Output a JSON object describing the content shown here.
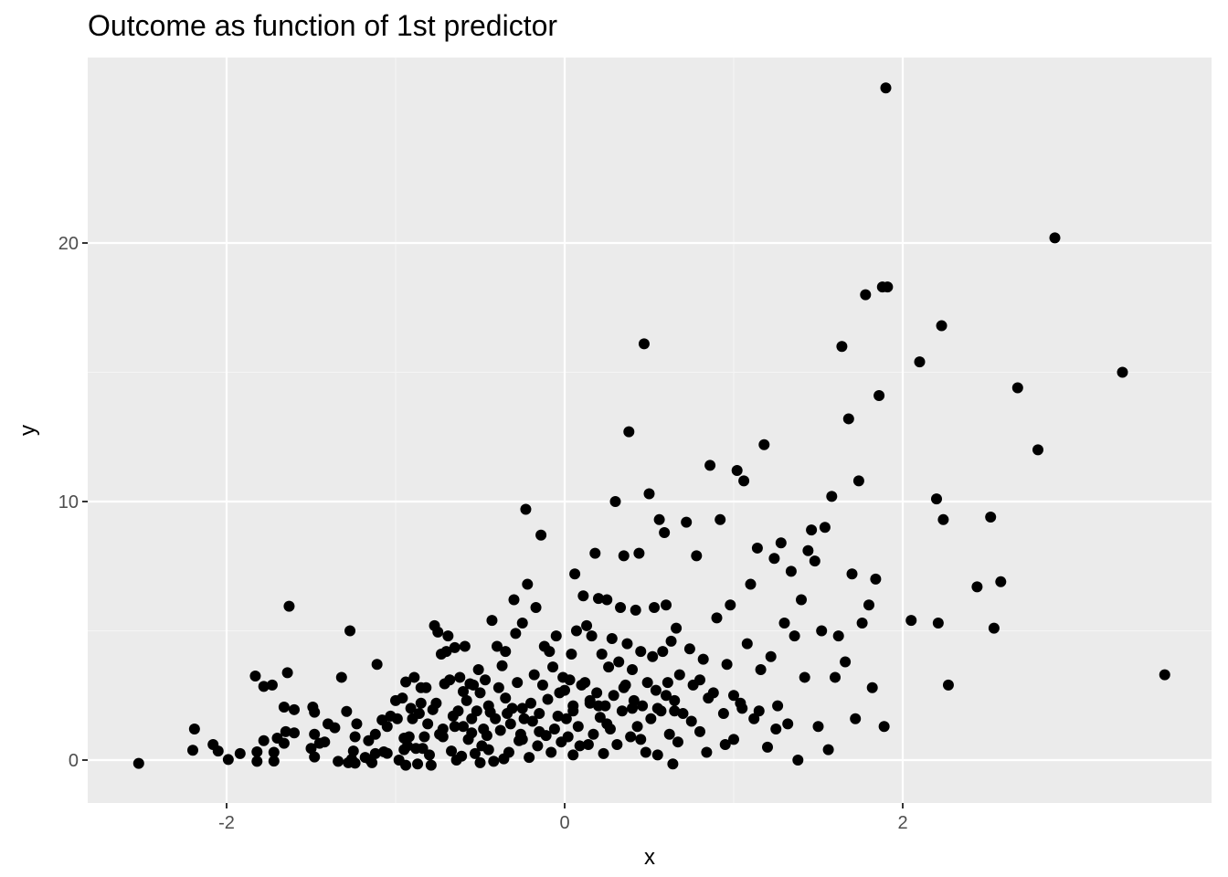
{
  "chart_data": {
    "type": "scatter",
    "title": "Outcome as function of 1st predictor",
    "xlabel": "x",
    "ylabel": "y",
    "xlim": [
      -2.55,
      3.55
    ],
    "ylim": [
      -0.3,
      26.0
    ],
    "x_ticks": [
      -2,
      0,
      2
    ],
    "y_ticks": [
      0,
      10,
      20
    ],
    "x_tick_labels": [
      "-2",
      "0",
      "2"
    ],
    "y_tick_labels": [
      "0",
      "10",
      "20"
    ],
    "grid": true,
    "colors": {
      "panel_bg": "#ebebeb",
      "grid_major": "#ffffff",
      "point": "#000000",
      "tick_label": "#4d4d4d"
    },
    "points": [
      [
        -2.52,
        -0.13
      ],
      [
        -2.2,
        0.38
      ],
      [
        -2.19,
        1.2
      ],
      [
        -2.08,
        0.6
      ],
      [
        -2.05,
        0.35
      ],
      [
        -1.99,
        0.02
      ],
      [
        -1.92,
        0.25
      ],
      [
        -1.83,
        3.25
      ],
      [
        -1.82,
        -0.05
      ],
      [
        -1.82,
        0.32
      ],
      [
        -1.78,
        0.75
      ],
      [
        -1.78,
        2.85
      ],
      [
        -1.73,
        2.9
      ],
      [
        -1.72,
        0.3
      ],
      [
        -1.72,
        -0.04
      ],
      [
        -1.7,
        0.85
      ],
      [
        -1.66,
        0.65
      ],
      [
        -1.66,
        2.05
      ],
      [
        -1.65,
        1.1
      ],
      [
        -1.64,
        3.38
      ],
      [
        -1.63,
        5.95
      ],
      [
        -1.6,
        1.95
      ],
      [
        -1.6,
        1.05
      ],
      [
        -1.5,
        0.45
      ],
      [
        -1.49,
        2.05
      ],
      [
        -1.48,
        0.12
      ],
      [
        -1.48,
        1.0
      ],
      [
        -1.48,
        1.85
      ],
      [
        -1.45,
        0.65
      ],
      [
        -1.42,
        0.7
      ],
      [
        -1.4,
        1.4
      ],
      [
        -1.36,
        1.25
      ],
      [
        -1.34,
        -0.05
      ],
      [
        -1.32,
        3.2
      ],
      [
        -1.29,
        1.88
      ],
      [
        -1.28,
        -0.1
      ],
      [
        -1.27,
        5.0
      ],
      [
        -1.26,
        0.03
      ],
      [
        -1.25,
        0.35
      ],
      [
        -1.24,
        -0.12
      ],
      [
        -1.24,
        0.9
      ],
      [
        -1.23,
        1.4
      ],
      [
        -1.18,
        0.1
      ],
      [
        -1.16,
        0.75
      ],
      [
        -1.15,
        0.0
      ],
      [
        -1.14,
        -0.1
      ],
      [
        -1.12,
        0.25
      ],
      [
        -1.12,
        1.0
      ],
      [
        -1.11,
        3.7
      ],
      [
        -1.08,
        1.55
      ],
      [
        -1.07,
        0.32
      ],
      [
        -1.05,
        0.26
      ],
      [
        -1.03,
        1.7
      ],
      [
        -1.0,
        2.3
      ],
      [
        -0.99,
        1.6
      ],
      [
        -0.98,
        0.0
      ],
      [
        -0.96,
        2.4
      ],
      [
        -0.95,
        0.85
      ],
      [
        -0.94,
        -0.2
      ],
      [
        -0.94,
        3.02
      ],
      [
        -0.93,
        0.55
      ],
      [
        -0.92,
        0.9
      ],
      [
        -0.91,
        2.0
      ],
      [
        -0.9,
        1.6
      ],
      [
        -0.89,
        3.2
      ],
      [
        -0.88,
        0.45
      ],
      [
        -0.87,
        -0.15
      ],
      [
        -0.86,
        1.8
      ],
      [
        -0.85,
        2.8
      ],
      [
        -0.84,
        0.45
      ],
      [
        -0.83,
        0.9
      ],
      [
        -0.82,
        2.8
      ],
      [
        -0.81,
        1.4
      ],
      [
        -0.8,
        0.2
      ],
      [
        -0.79,
        -0.2
      ],
      [
        -0.78,
        1.95
      ],
      [
        -0.77,
        5.2
      ],
      [
        -0.76,
        2.2
      ],
      [
        -0.75,
        4.95
      ],
      [
        -0.74,
        1.0
      ],
      [
        -0.73,
        4.1
      ],
      [
        -0.72,
        1.2
      ],
      [
        -0.71,
        2.95
      ],
      [
        -0.7,
        4.2
      ],
      [
        -0.69,
        4.8
      ],
      [
        -0.68,
        3.1
      ],
      [
        -0.67,
        0.35
      ],
      [
        -0.66,
        1.7
      ],
      [
        -0.65,
        4.35
      ],
      [
        -0.64,
        0.0
      ],
      [
        -0.63,
        1.9
      ],
      [
        -0.62,
        3.2
      ],
      [
        -0.61,
        0.15
      ],
      [
        -0.6,
        2.65
      ],
      [
        -0.6,
        1.3
      ],
      [
        -0.59,
        4.4
      ],
      [
        -0.58,
        2.3
      ],
      [
        -0.57,
        0.8
      ],
      [
        -0.56,
        2.95
      ],
      [
        -0.55,
        1.05
      ],
      [
        -0.54,
        2.9
      ],
      [
        -0.53,
        0.25
      ],
      [
        -0.52,
        1.9
      ],
      [
        -0.51,
        3.5
      ],
      [
        -0.5,
        2.6
      ],
      [
        -0.5,
        -0.1
      ],
      [
        -0.49,
        0.55
      ],
      [
        -0.48,
        1.2
      ],
      [
        -0.47,
        3.1
      ],
      [
        -0.46,
        0.95
      ],
      [
        -0.45,
        2.1
      ],
      [
        -0.44,
        1.85
      ],
      [
        -0.43,
        5.4
      ],
      [
        -0.42,
        -0.05
      ],
      [
        -0.41,
        1.6
      ],
      [
        -0.4,
        4.4
      ],
      [
        -0.39,
        2.8
      ],
      [
        -0.38,
        1.15
      ],
      [
        -0.37,
        3.65
      ],
      [
        -0.36,
        0.05
      ],
      [
        -0.35,
        4.2
      ],
      [
        -0.34,
        1.8
      ],
      [
        -0.33,
        0.3
      ],
      [
        -0.32,
        1.4
      ],
      [
        -0.31,
        2.0
      ],
      [
        -0.3,
        6.2
      ],
      [
        -0.29,
        4.9
      ],
      [
        -0.28,
        3.0
      ],
      [
        -0.27,
        0.75
      ],
      [
        -0.26,
        1.0
      ],
      [
        -0.25,
        5.3
      ],
      [
        -0.24,
        1.6
      ],
      [
        -0.23,
        9.7
      ],
      [
        -0.22,
        6.8
      ],
      [
        -0.21,
        0.1
      ],
      [
        -0.2,
        2.2
      ],
      [
        -0.19,
        1.5
      ],
      [
        -0.18,
        3.3
      ],
      [
        -0.17,
        5.9
      ],
      [
        -0.16,
        0.55
      ],
      [
        -0.15,
        1.8
      ],
      [
        -0.14,
        8.7
      ],
      [
        -0.13,
        2.9
      ],
      [
        -0.12,
        4.4
      ],
      [
        -0.11,
        0.95
      ],
      [
        -0.1,
        2.35
      ],
      [
        -0.09,
        4.2
      ],
      [
        -0.08,
        0.3
      ],
      [
        -0.07,
        3.6
      ],
      [
        -0.06,
        1.2
      ],
      [
        -0.05,
        4.8
      ],
      [
        -0.04,
        1.7
      ],
      [
        -0.03,
        2.6
      ],
      [
        -0.02,
        0.7
      ],
      [
        -0.01,
        3.2
      ],
      [
        0.0,
        2.7
      ],
      [
        0.01,
        1.6
      ],
      [
        0.02,
        0.9
      ],
      [
        0.03,
        3.1
      ],
      [
        0.04,
        4.1
      ],
      [
        0.05,
        2.1
      ],
      [
        0.06,
        7.2
      ],
      [
        0.07,
        5.0
      ],
      [
        0.08,
        1.3
      ],
      [
        0.09,
        0.55
      ],
      [
        0.1,
        2.9
      ],
      [
        0.11,
        6.35
      ],
      [
        0.12,
        3.0
      ],
      [
        0.13,
        5.2
      ],
      [
        0.14,
        0.6
      ],
      [
        0.15,
        2.2
      ],
      [
        0.16,
        4.8
      ],
      [
        0.17,
        1.0
      ],
      [
        0.18,
        8.0
      ],
      [
        0.19,
        2.6
      ],
      [
        0.2,
        6.25
      ],
      [
        0.21,
        1.65
      ],
      [
        0.22,
        4.1
      ],
      [
        0.23,
        0.25
      ],
      [
        0.24,
        2.1
      ],
      [
        0.25,
        6.2
      ],
      [
        0.26,
        3.6
      ],
      [
        0.27,
        1.2
      ],
      [
        0.28,
        4.7
      ],
      [
        0.29,
        2.5
      ],
      [
        0.3,
        10.0
      ],
      [
        0.31,
        0.6
      ],
      [
        0.32,
        3.8
      ],
      [
        0.33,
        5.9
      ],
      [
        0.34,
        1.9
      ],
      [
        0.35,
        7.9
      ],
      [
        0.36,
        2.9
      ],
      [
        0.37,
        4.5
      ],
      [
        0.38,
        12.7
      ],
      [
        0.39,
        0.9
      ],
      [
        0.4,
        3.5
      ],
      [
        0.41,
        2.3
      ],
      [
        0.42,
        5.8
      ],
      [
        0.43,
        1.3
      ],
      [
        0.44,
        8.0
      ],
      [
        0.45,
        4.2
      ],
      [
        0.46,
        2.1
      ],
      [
        0.47,
        16.1
      ],
      [
        0.48,
        0.3
      ],
      [
        0.49,
        3.0
      ],
      [
        0.5,
        10.3
      ],
      [
        0.51,
        1.6
      ],
      [
        0.52,
        4.0
      ],
      [
        0.53,
        5.9
      ],
      [
        0.54,
        2.7
      ],
      [
        0.55,
        0.2
      ],
      [
        0.56,
        9.3
      ],
      [
        0.57,
        1.9
      ],
      [
        0.58,
        4.2
      ],
      [
        0.59,
        8.8
      ],
      [
        0.6,
        6.0
      ],
      [
        0.61,
        3.0
      ],
      [
        0.62,
        1.0
      ],
      [
        0.63,
        4.6
      ],
      [
        0.64,
        -0.15
      ],
      [
        0.65,
        2.3
      ],
      [
        0.66,
        5.1
      ],
      [
        0.67,
        0.7
      ],
      [
        0.68,
        3.3
      ],
      [
        0.7,
        1.8
      ],
      [
        0.72,
        9.2
      ],
      [
        0.74,
        4.3
      ],
      [
        0.76,
        2.9
      ],
      [
        0.78,
        7.9
      ],
      [
        0.8,
        1.1
      ],
      [
        0.82,
        3.9
      ],
      [
        0.84,
        0.3
      ],
      [
        0.86,
        11.4
      ],
      [
        0.88,
        2.6
      ],
      [
        0.9,
        5.5
      ],
      [
        0.92,
        9.3
      ],
      [
        0.94,
        1.8
      ],
      [
        0.96,
        3.7
      ],
      [
        0.98,
        6.0
      ],
      [
        1.0,
        0.8
      ],
      [
        1.02,
        11.2
      ],
      [
        1.04,
        2.2
      ],
      [
        1.06,
        10.8
      ],
      [
        1.08,
        4.5
      ],
      [
        1.1,
        6.8
      ],
      [
        1.12,
        1.6
      ],
      [
        1.14,
        8.2
      ],
      [
        1.16,
        3.5
      ],
      [
        1.18,
        12.2
      ],
      [
        1.2,
        0.5
      ],
      [
        1.22,
        4.0
      ],
      [
        1.24,
        7.8
      ],
      [
        1.26,
        2.1
      ],
      [
        1.28,
        8.4
      ],
      [
        1.3,
        5.3
      ],
      [
        1.32,
        1.4
      ],
      [
        1.34,
        7.3
      ],
      [
        1.36,
        4.8
      ],
      [
        1.38,
        0.0
      ],
      [
        1.4,
        6.2
      ],
      [
        1.42,
        3.2
      ],
      [
        1.44,
        8.1
      ],
      [
        1.46,
        8.9
      ],
      [
        1.48,
        7.7
      ],
      [
        1.5,
        1.3
      ],
      [
        1.52,
        5.0
      ],
      [
        1.54,
        9.0
      ],
      [
        1.56,
        0.4
      ],
      [
        1.58,
        10.2
      ],
      [
        1.6,
        3.2
      ],
      [
        1.62,
        4.8
      ],
      [
        1.64,
        16.0
      ],
      [
        1.66,
        3.8
      ],
      [
        1.68,
        13.2
      ],
      [
        1.7,
        7.2
      ],
      [
        1.72,
        1.6
      ],
      [
        1.74,
        10.8
      ],
      [
        1.76,
        5.3
      ],
      [
        1.78,
        18.0
      ],
      [
        1.8,
        6.0
      ],
      [
        1.82,
        2.8
      ],
      [
        1.84,
        7.0
      ],
      [
        1.86,
        14.1
      ],
      [
        1.88,
        18.3
      ],
      [
        1.89,
        1.3
      ],
      [
        1.9,
        26.0
      ],
      [
        1.91,
        18.3
      ],
      [
        2.05,
        5.4
      ],
      [
        2.1,
        15.4
      ],
      [
        2.2,
        10.1
      ],
      [
        2.21,
        5.3
      ],
      [
        2.23,
        16.8
      ],
      [
        2.24,
        9.3
      ],
      [
        2.27,
        2.9
      ],
      [
        2.44,
        6.7
      ],
      [
        2.52,
        9.4
      ],
      [
        2.54,
        5.1
      ],
      [
        2.58,
        6.9
      ],
      [
        2.68,
        14.4
      ],
      [
        2.8,
        12.0
      ],
      [
        2.9,
        20.2
      ],
      [
        3.3,
        15.0
      ],
      [
        3.55,
        3.3
      ],
      [
        -0.95,
        0.4
      ],
      [
        -0.72,
        0.9
      ],
      [
        -0.55,
        1.6
      ],
      [
        -0.35,
        2.4
      ],
      [
        -0.15,
        1.1
      ],
      [
        0.05,
        0.2
      ],
      [
        0.25,
        1.4
      ],
      [
        0.45,
        0.8
      ],
      [
        0.65,
        1.9
      ],
      [
        0.85,
        2.4
      ],
      [
        1.05,
        2.0
      ],
      [
        1.25,
        1.2
      ],
      [
        -0.45,
        0.4
      ],
      [
        -0.25,
        0.8
      ],
      [
        0.15,
        2.3
      ],
      [
        0.35,
        2.8
      ],
      [
        0.55,
        2.0
      ],
      [
        0.75,
        1.5
      ],
      [
        0.95,
        0.6
      ],
      [
        1.15,
        1.9
      ],
      [
        -1.05,
        1.3
      ],
      [
        -0.85,
        2.2
      ],
      [
        -0.65,
        1.3
      ],
      [
        -0.25,
        2.0
      ],
      [
        0.05,
        1.9
      ],
      [
        0.2,
        2.1
      ],
      [
        0.4,
        2.0
      ],
      [
        0.6,
        2.5
      ],
      [
        0.8,
        3.1
      ],
      [
        1.0,
        2.5
      ]
    ]
  }
}
